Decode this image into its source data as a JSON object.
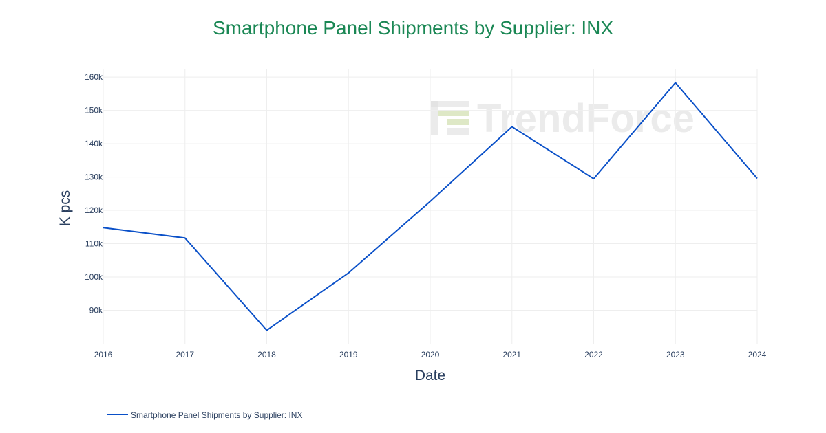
{
  "colors": {
    "title": "#1a8754",
    "series": "#0a50c8",
    "text": "#2a3f5f",
    "grid": "#eeeeee",
    "watermark_green": "#c8d9a0"
  },
  "watermark": {
    "text": "TrendForce"
  },
  "chart_data": {
    "type": "line",
    "title": "Smartphone Panel Shipments by Supplier: INX",
    "xlabel": "Date",
    "ylabel": "K pcs",
    "x": [
      2016,
      2017,
      2018,
      2019,
      2020,
      2021,
      2022,
      2023,
      2024
    ],
    "x_ticks": [
      "2016",
      "2017",
      "2018",
      "2019",
      "2020",
      "2021",
      "2022",
      "2023",
      "2024"
    ],
    "y_ticks": [
      90000,
      100000,
      110000,
      120000,
      130000,
      140000,
      150000,
      160000
    ],
    "y_tick_labels": [
      "90k",
      "100k",
      "110k",
      "120k",
      "130k",
      "140k",
      "150k",
      "160k"
    ],
    "ylim": [
      80000,
      162500
    ],
    "xlim": [
      2016,
      2024
    ],
    "grid": true,
    "legend_position": "bottom-left",
    "series": [
      {
        "name": "Smartphone Panel Shipments by Supplier: INX",
        "values": [
          114800,
          111700,
          84000,
          101200,
          122700,
          145100,
          129500,
          158300,
          129600
        ]
      }
    ]
  }
}
